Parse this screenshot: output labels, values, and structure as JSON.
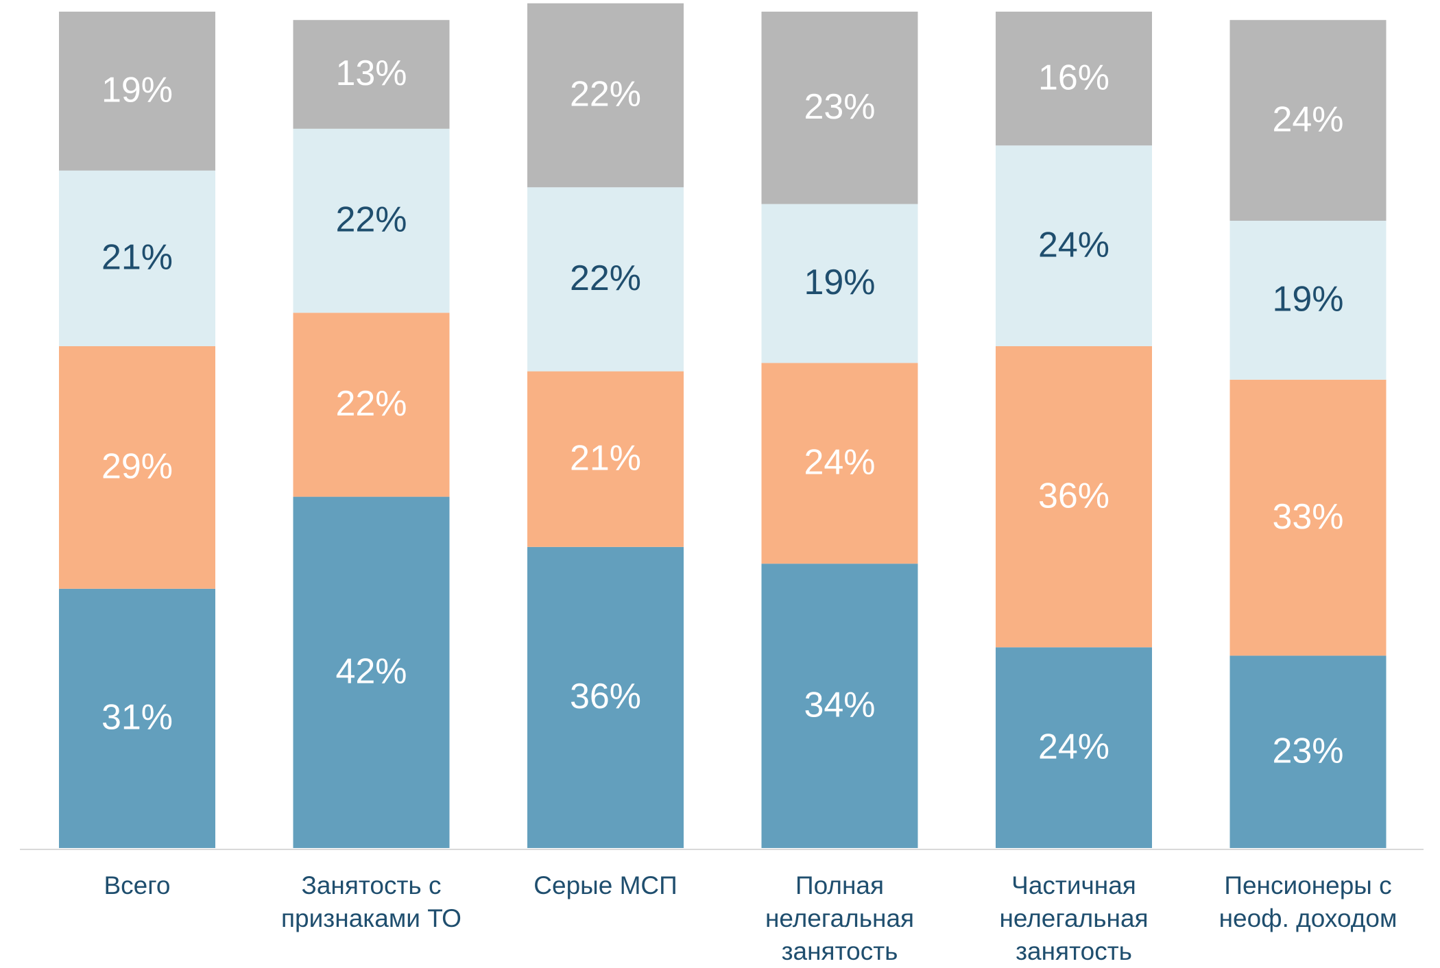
{
  "chart_data": {
    "type": "stacked-bar",
    "categories": [
      "Всего",
      "Занятость с признаками ТО",
      "Серые МСП",
      "Полная нелегальная занятость",
      "Частичная нелегальная занятость",
      "Пенсионеры с неоф. доходом"
    ],
    "ylim": [
      0,
      100
    ],
    "series": [
      {
        "color": "#639fbd",
        "label_color": "#ffffff",
        "values": [
          31,
          42,
          36,
          34,
          24,
          23
        ],
        "value_labels": [
          "31%",
          "42%",
          "36%",
          "34%",
          "24%",
          "23%"
        ]
      },
      {
        "color": "#f9b184",
        "label_color": "#ffffff",
        "values": [
          29,
          22,
          21,
          24,
          36,
          33
        ],
        "value_labels": [
          "29%",
          "22%",
          "21%",
          "24%",
          "36%",
          "33%"
        ]
      },
      {
        "color": "#ddedf2",
        "label_color": "#1f4e6e",
        "values": [
          21,
          22,
          22,
          19,
          24,
          19
        ],
        "value_labels": [
          "21%",
          "22%",
          "22%",
          "19%",
          "24%",
          "19%"
        ]
      },
      {
        "color": "#b7b7b7",
        "label_color": "#ffffff",
        "values": [
          19,
          13,
          22,
          23,
          16,
          24
        ],
        "value_labels": [
          "19%",
          "13%",
          "22%",
          "23%",
          "16%",
          "24%"
        ]
      }
    ]
  }
}
